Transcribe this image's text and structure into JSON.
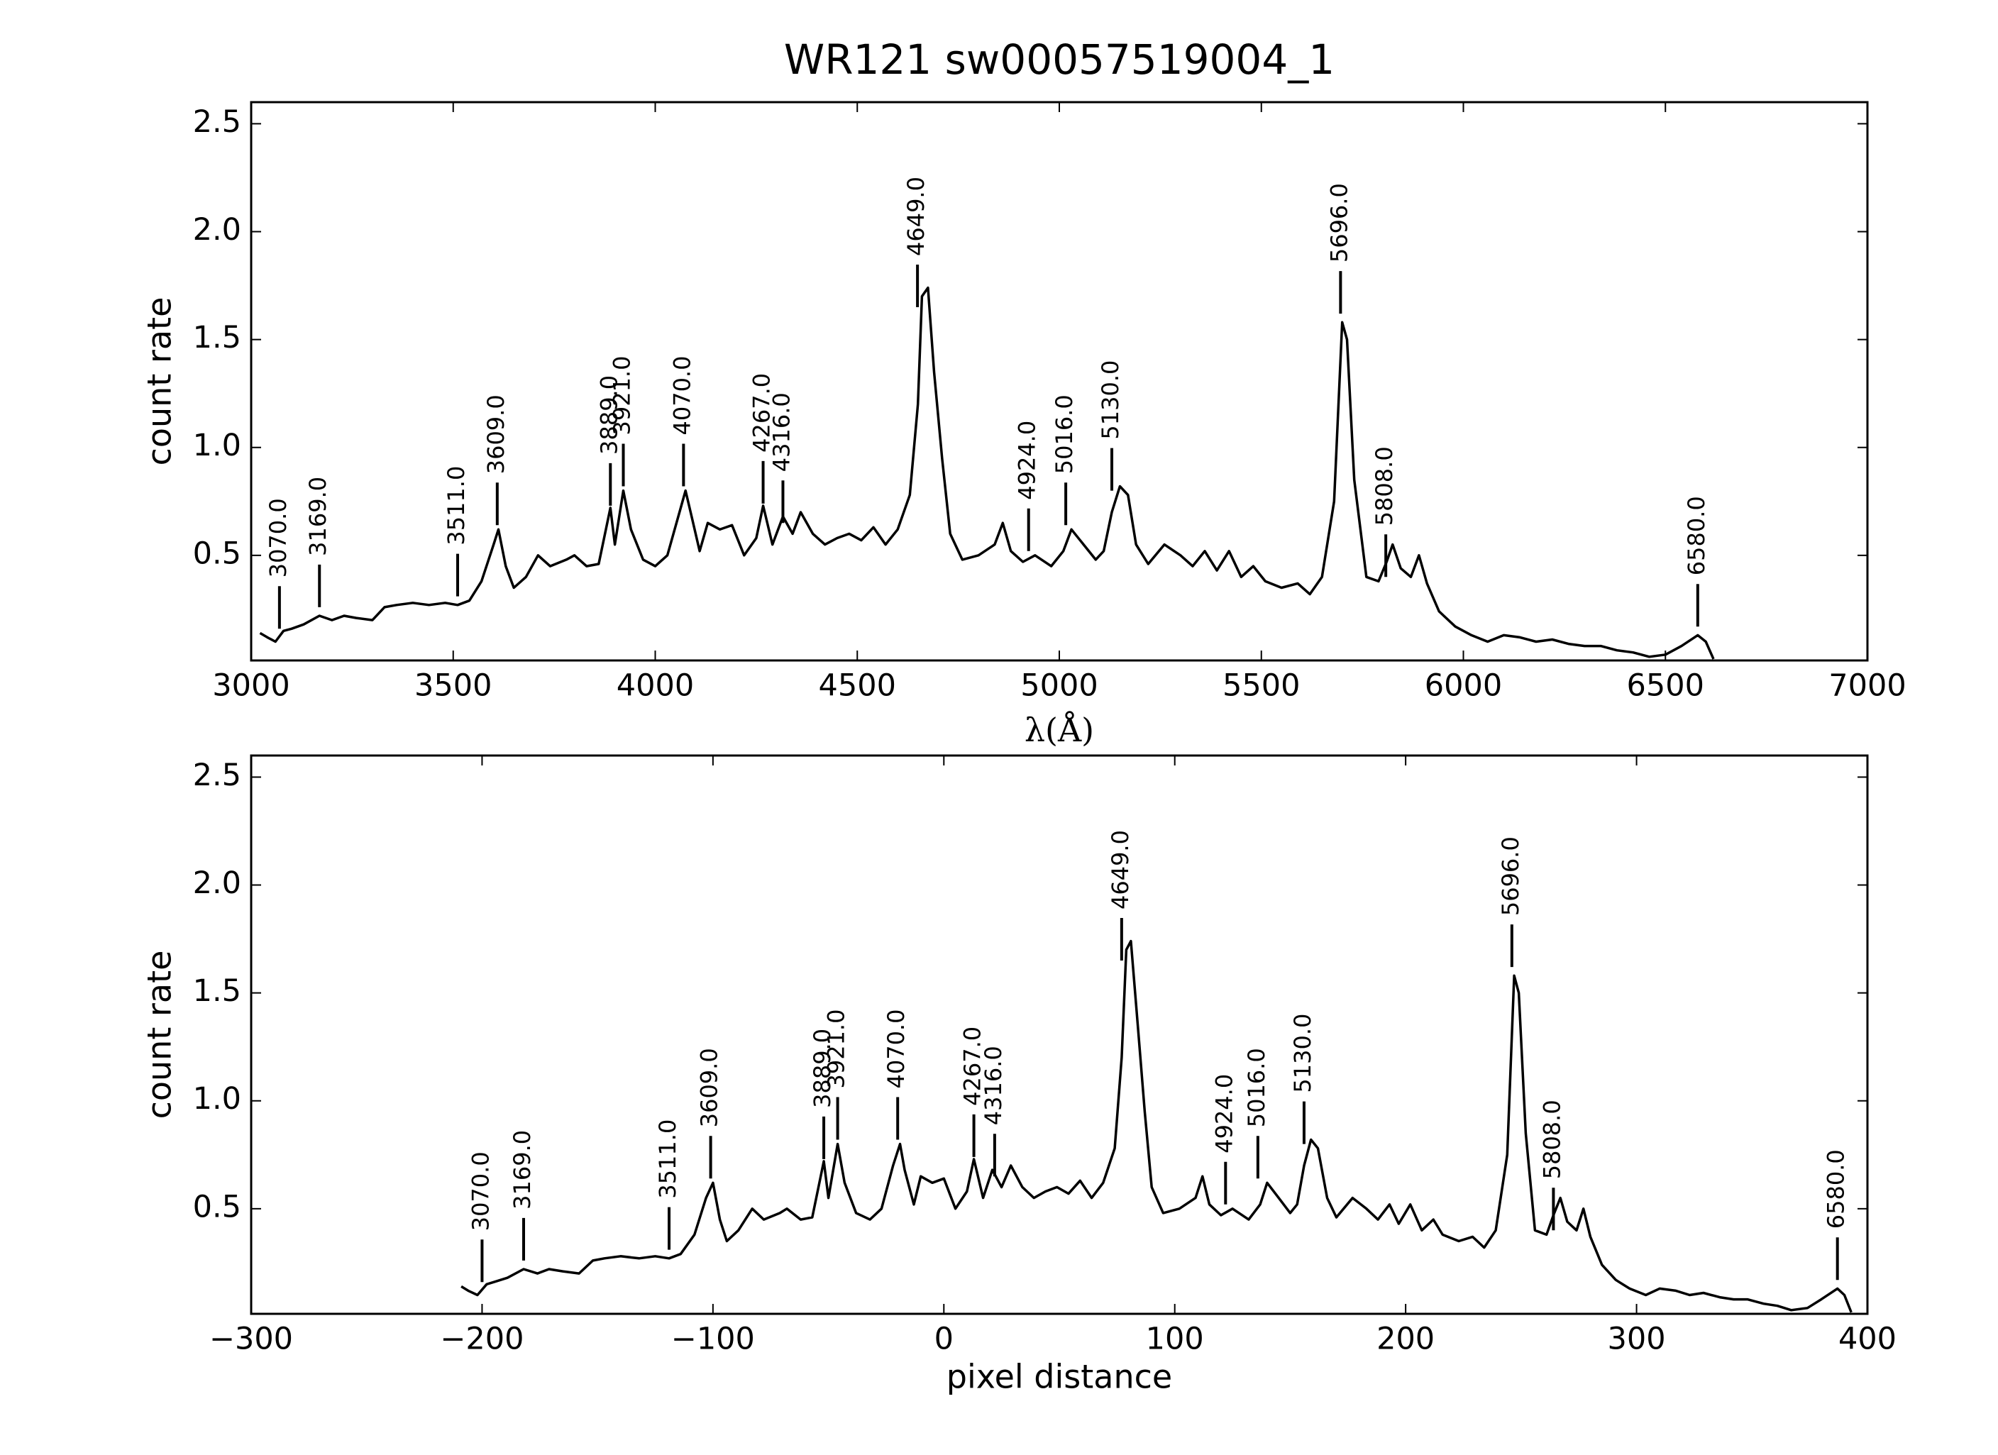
{
  "chart_data": [
    {
      "type": "line",
      "title": "WR121  sw00057519004_1",
      "xlabel": "λ(Å)",
      "ylabel": "count rate",
      "color": "#000000",
      "xlim": [
        3000,
        7000
      ],
      "xticks": [
        3000,
        3500,
        4000,
        4500,
        5000,
        5500,
        6000,
        6500,
        7000
      ],
      "ylim": [
        0.013,
        2.6
      ],
      "yticks": [
        0.5,
        {
          "value": 1,
          "label": "1.0"
        },
        1.5,
        {
          "value": 2,
          "label": "2.0"
        },
        2.5
      ],
      "x": [
        3022,
        3040,
        3060,
        3080,
        3100,
        3130,
        3169,
        3200,
        3230,
        3260,
        3300,
        3330,
        3360,
        3400,
        3440,
        3480,
        3511,
        3540,
        3570,
        3600,
        3612,
        3630,
        3650,
        3680,
        3710,
        3740,
        3780,
        3800,
        3830,
        3860,
        3889,
        3900,
        3921,
        3940,
        3970,
        4000,
        4030,
        4060,
        4075,
        4090,
        4110,
        4130,
        4160,
        4190,
        4220,
        4250,
        4267,
        4290,
        4316,
        4340,
        4360,
        4390,
        4420,
        4450,
        4480,
        4510,
        4540,
        4570,
        4600,
        4630,
        4650,
        4660,
        4675,
        4690,
        4710,
        4730,
        4760,
        4800,
        4840,
        4860,
        4880,
        4910,
        4940,
        4980,
        5010,
        5030,
        5060,
        5090,
        5110,
        5130,
        5150,
        5170,
        5190,
        5220,
        5260,
        5300,
        5330,
        5360,
        5390,
        5420,
        5450,
        5480,
        5510,
        5550,
        5590,
        5620,
        5650,
        5680,
        5700,
        5712,
        5730,
        5760,
        5790,
        5810,
        5825,
        5845,
        5870,
        5890,
        5910,
        5940,
        5980,
        6020,
        6060,
        6100,
        6140,
        6180,
        6220,
        6260,
        6300,
        6340,
        6380,
        6420,
        6460,
        6500,
        6540,
        6580,
        6600,
        6619
      ],
      "values": [
        0.14,
        0.12,
        0.1,
        0.15,
        0.16,
        0.18,
        0.22,
        0.2,
        0.22,
        0.21,
        0.2,
        0.26,
        0.27,
        0.28,
        0.27,
        0.28,
        0.27,
        0.29,
        0.38,
        0.55,
        0.62,
        0.45,
        0.35,
        0.4,
        0.5,
        0.45,
        0.48,
        0.5,
        0.45,
        0.46,
        0.72,
        0.55,
        0.8,
        0.62,
        0.48,
        0.45,
        0.5,
        0.7,
        0.8,
        0.68,
        0.52,
        0.65,
        0.62,
        0.64,
        0.5,
        0.58,
        0.73,
        0.55,
        0.68,
        0.6,
        0.7,
        0.6,
        0.55,
        0.58,
        0.6,
        0.57,
        0.63,
        0.55,
        0.62,
        0.78,
        1.2,
        1.7,
        1.74,
        1.35,
        0.95,
        0.6,
        0.48,
        0.5,
        0.55,
        0.65,
        0.52,
        0.47,
        0.5,
        0.45,
        0.52,
        0.62,
        0.55,
        0.48,
        0.52,
        0.7,
        0.82,
        0.78,
        0.55,
        0.46,
        0.55,
        0.5,
        0.45,
        0.52,
        0.43,
        0.52,
        0.4,
        0.45,
        0.38,
        0.35,
        0.37,
        0.32,
        0.4,
        0.75,
        1.58,
        1.5,
        0.85,
        0.4,
        0.38,
        0.47,
        0.55,
        0.44,
        0.4,
        0.5,
        0.37,
        0.24,
        0.17,
        0.13,
        0.1,
        0.13,
        0.12,
        0.1,
        0.11,
        0.09,
        0.08,
        0.08,
        0.06,
        0.05,
        0.03,
        0.04,
        0.08,
        0.13,
        0.1,
        0.02
      ],
      "annotations": [
        {
          "text": "3070.0",
          "x": 3070,
          "y": 0.16
        },
        {
          "text": "3169.0",
          "x": 3169,
          "y": 0.26
        },
        {
          "text": "3511.0",
          "x": 3511,
          "y": 0.31
        },
        {
          "text": "3609.0",
          "x": 3609,
          "y": 0.64
        },
        {
          "text": "3889.0",
          "x": 3889,
          "y": 0.73
        },
        {
          "text": "3921.0",
          "x": 3921,
          "y": 0.82
        },
        {
          "text": "4070.0",
          "x": 4070,
          "y": 0.82
        },
        {
          "text": "4267.0",
          "x": 4267,
          "y": 0.74
        },
        {
          "text": "4316.0",
          "x": 4316,
          "y": 0.65
        },
        {
          "text": "4649.0",
          "x": 4649,
          "y": 1.65
        },
        {
          "text": "4924.0",
          "x": 4924,
          "y": 0.52
        },
        {
          "text": "5016.0",
          "x": 5016,
          "y": 0.64
        },
        {
          "text": "5130.0",
          "x": 5130,
          "y": 0.8
        },
        {
          "text": "5696.0",
          "x": 5696,
          "y": 1.62
        },
        {
          "text": "5808.0",
          "x": 5808,
          "y": 0.4
        },
        {
          "text": "6580.0",
          "x": 6580,
          "y": 0.17
        }
      ]
    },
    {
      "type": "line",
      "xlabel": "pixel distance",
      "ylabel": "count rate",
      "color": "#000000",
      "xlim": [
        -300,
        400
      ],
      "xticks": [
        {
          "value": -300,
          "label": "−300"
        },
        {
          "value": -200,
          "label": "−200"
        },
        {
          "value": -100,
          "label": "−100"
        },
        0,
        100,
        200,
        300,
        400
      ],
      "ylim": [
        0.013,
        2.6
      ],
      "yticks": [
        0.5,
        {
          "value": 1,
          "label": "1.0"
        },
        1.5,
        {
          "value": 2,
          "label": "2.0"
        },
        2.5
      ],
      "x": [
        -209,
        -206,
        -202,
        -198,
        -195,
        -189,
        -182,
        -176,
        -171,
        -165,
        -158,
        -152,
        -147,
        -140,
        -132,
        -125,
        -119,
        -114,
        -108,
        -103,
        -100,
        -97,
        -94,
        -89,
        -83,
        -78,
        -71,
        -68,
        -62,
        -57,
        -52,
        -50,
        -46,
        -43,
        -38,
        -32,
        -27,
        -22,
        -19,
        -17,
        -13,
        -10,
        -5,
        0,
        5,
        10,
        13,
        17,
        21,
        25,
        29,
        34,
        39,
        44,
        49,
        54,
        59,
        64,
        69,
        74,
        77,
        79,
        81,
        84,
        87,
        90,
        95,
        102,
        109,
        112,
        115,
        120,
        125,
        132,
        137,
        140,
        145,
        150,
        153,
        156,
        159,
        162,
        166,
        170,
        177,
        183,
        188,
        193,
        197,
        202,
        207,
        212,
        216,
        223,
        229,
        234,
        239,
        244,
        247,
        249,
        252,
        256,
        261,
        264,
        267,
        270,
        274,
        277,
        280,
        285,
        291,
        297,
        304,
        310,
        317,
        323,
        329,
        336,
        342,
        348,
        355,
        361,
        367,
        374,
        380,
        387,
        390,
        393
      ],
      "values": [
        0.14,
        0.12,
        0.1,
        0.15,
        0.16,
        0.18,
        0.22,
        0.2,
        0.22,
        0.21,
        0.2,
        0.26,
        0.27,
        0.28,
        0.27,
        0.28,
        0.27,
        0.29,
        0.38,
        0.55,
        0.62,
        0.45,
        0.35,
        0.4,
        0.5,
        0.45,
        0.48,
        0.5,
        0.45,
        0.46,
        0.72,
        0.55,
        0.8,
        0.62,
        0.48,
        0.45,
        0.5,
        0.7,
        0.8,
        0.68,
        0.52,
        0.65,
        0.62,
        0.64,
        0.5,
        0.58,
        0.73,
        0.55,
        0.68,
        0.6,
        0.7,
        0.6,
        0.55,
        0.58,
        0.6,
        0.57,
        0.63,
        0.55,
        0.62,
        0.78,
        1.2,
        1.7,
        1.74,
        1.35,
        0.95,
        0.6,
        0.48,
        0.5,
        0.55,
        0.65,
        0.52,
        0.47,
        0.5,
        0.45,
        0.52,
        0.62,
        0.55,
        0.48,
        0.52,
        0.7,
        0.82,
        0.78,
        0.55,
        0.46,
        0.55,
        0.5,
        0.45,
        0.52,
        0.43,
        0.52,
        0.4,
        0.45,
        0.38,
        0.35,
        0.37,
        0.32,
        0.4,
        0.75,
        1.58,
        1.5,
        0.85,
        0.4,
        0.38,
        0.47,
        0.55,
        0.44,
        0.4,
        0.5,
        0.37,
        0.24,
        0.17,
        0.13,
        0.1,
        0.13,
        0.12,
        0.1,
        0.11,
        0.09,
        0.08,
        0.08,
        0.06,
        0.05,
        0.03,
        0.04,
        0.08,
        0.13,
        0.1,
        0.02
      ],
      "annotations": [
        {
          "text": "3070.0",
          "x": -200,
          "y": 0.16
        },
        {
          "text": "3169.0",
          "x": -182,
          "y": 0.26
        },
        {
          "text": "3511.0",
          "x": -119,
          "y": 0.31
        },
        {
          "text": "3609.0",
          "x": -101,
          "y": 0.64
        },
        {
          "text": "3889.0",
          "x": -52,
          "y": 0.73
        },
        {
          "text": "3921.0",
          "x": -46,
          "y": 0.82
        },
        {
          "text": "4070.0",
          "x": -20,
          "y": 0.82
        },
        {
          "text": "4267.0",
          "x": 13,
          "y": 0.74
        },
        {
          "text": "4316.0",
          "x": 22,
          "y": 0.65
        },
        {
          "text": "4649.0",
          "x": 77,
          "y": 1.65
        },
        {
          "text": "4924.0",
          "x": 122,
          "y": 0.52
        },
        {
          "text": "5016.0",
          "x": 136,
          "y": 0.64
        },
        {
          "text": "5130.0",
          "x": 156,
          "y": 0.8
        },
        {
          "text": "5696.0",
          "x": 246,
          "y": 1.62
        },
        {
          "text": "5808.0",
          "x": 264,
          "y": 0.4
        },
        {
          "text": "6580.0",
          "x": 387,
          "y": 0.17
        }
      ]
    }
  ]
}
